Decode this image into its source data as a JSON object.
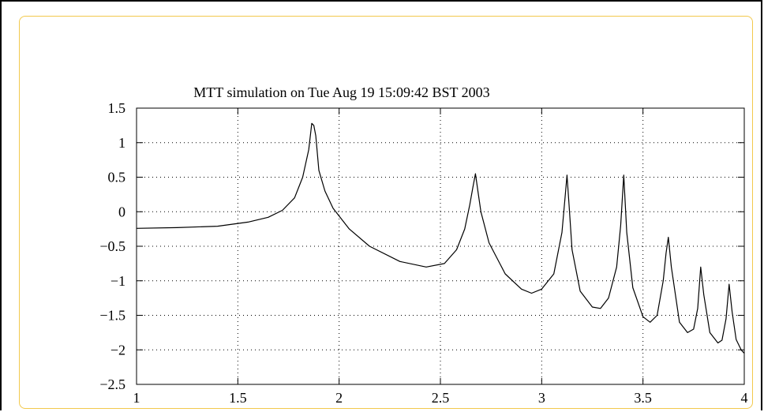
{
  "chart_data": {
    "type": "line",
    "title": "MTT simulation on Tue Aug 19 15:09:42 BST 2003",
    "xlabel": "",
    "ylabel": "",
    "xlim": [
      1,
      4
    ],
    "ylim": [
      -2.5,
      1.5
    ],
    "xticks": [
      1,
      1.5,
      2,
      2.5,
      3,
      3.5,
      4
    ],
    "yticks": [
      1.5,
      1,
      0.5,
      0,
      -0.5,
      -1,
      -1.5,
      -2,
      -2.5
    ],
    "xtick_labels": [
      "1",
      "1.5",
      "2",
      "2.5",
      "3",
      "3.5",
      "4"
    ],
    "ytick_labels": [
      "1.5",
      "1",
      "0.5",
      "0",
      "−0.5",
      "−1",
      "−1.5",
      "−2",
      "−2.5"
    ],
    "grid": true,
    "series": [
      {
        "color": "#000000",
        "x": [
          1.0,
          1.2,
          1.4,
          1.55,
          1.65,
          1.72,
          1.78,
          1.82,
          1.85,
          1.865,
          1.875,
          1.885,
          1.9,
          1.93,
          1.97,
          2.05,
          2.15,
          2.3,
          2.43,
          2.52,
          2.58,
          2.62,
          2.645,
          2.66,
          2.673,
          2.685,
          2.7,
          2.74,
          2.82,
          2.9,
          2.95,
          3.0,
          3.06,
          3.1,
          3.115,
          3.125,
          3.135,
          3.15,
          3.19,
          3.25,
          3.29,
          3.33,
          3.37,
          3.39,
          3.405,
          3.42,
          3.45,
          3.5,
          3.535,
          3.57,
          3.6,
          3.614,
          3.625,
          3.64,
          3.68,
          3.72,
          3.75,
          3.77,
          3.785,
          3.8,
          3.83,
          3.87,
          3.89,
          3.91,
          3.925,
          3.94,
          3.96,
          3.985,
          4.0
        ],
        "y": [
          -0.24,
          -0.23,
          -0.21,
          -0.15,
          -0.08,
          0.02,
          0.2,
          0.5,
          0.9,
          1.28,
          1.25,
          1.1,
          0.6,
          0.3,
          0.05,
          -0.25,
          -0.5,
          -0.72,
          -0.8,
          -0.75,
          -0.55,
          -0.25,
          0.1,
          0.35,
          0.55,
          0.3,
          0.0,
          -0.45,
          -0.9,
          -1.12,
          -1.18,
          -1.12,
          -0.9,
          -0.3,
          0.2,
          0.53,
          0.1,
          -0.55,
          -1.15,
          -1.38,
          -1.4,
          -1.25,
          -0.8,
          -0.2,
          0.53,
          -0.3,
          -1.1,
          -1.52,
          -1.6,
          -1.5,
          -1.0,
          -0.6,
          -0.37,
          -0.8,
          -1.6,
          -1.75,
          -1.7,
          -1.4,
          -0.8,
          -1.2,
          -1.75,
          -1.9,
          -1.86,
          -1.55,
          -1.05,
          -1.45,
          -1.85,
          -2.0,
          -2.05
        ]
      }
    ]
  }
}
